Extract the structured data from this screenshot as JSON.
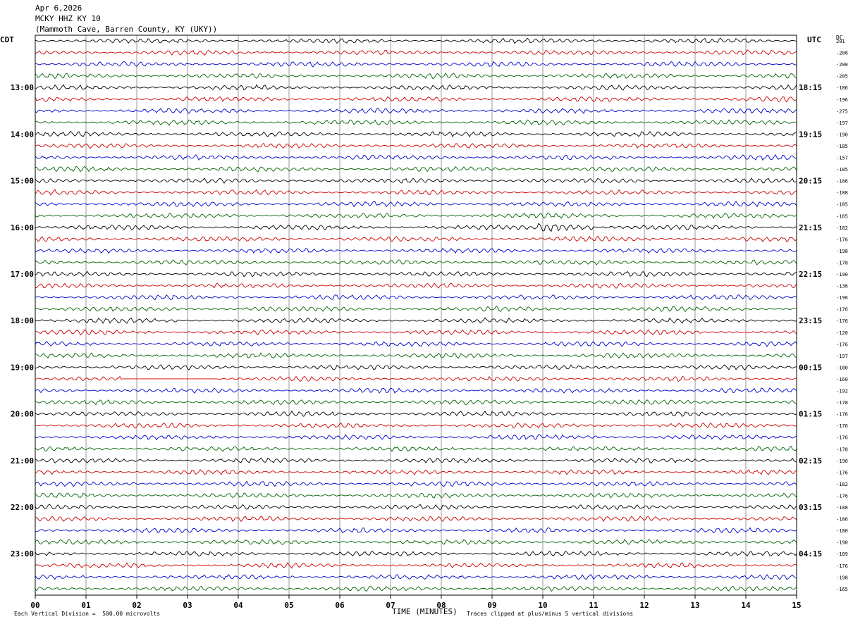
{
  "header": {
    "date": "Apr 6,2026",
    "station": "MCKY HHZ KY 10",
    "location": "(Mammoth Cave, Barren County, KY (UKY))"
  },
  "labels": {
    "left_tz": "CDT",
    "right_tz": "UTC",
    "dc_label": "DC"
  },
  "footer": {
    "scale": "Each Vertical Division =  500.00 microvolts",
    "xlabel": "TIME (MINUTES)",
    "clip": "Traces clipped at plus/minus 5 vertical divisions"
  },
  "colors": {
    "trace_cycle": [
      "#000000",
      "#cc0000",
      "#0000cc",
      "#006400"
    ],
    "grid": "#808080"
  },
  "chart_data": {
    "type": "seismogram-helicorder",
    "xlabel": "TIME (MINUTES)",
    "x_ticks": [
      "00",
      "01",
      "02",
      "03",
      "04",
      "05",
      "06",
      "07",
      "08",
      "09",
      "10",
      "11",
      "12",
      "13",
      "14",
      "15"
    ],
    "xlim": [
      0,
      15
    ],
    "rows_per_hour": 4,
    "minutes_per_row": 15,
    "left_hour_labels": [
      "13:00",
      "14:00",
      "15:00",
      "16:00",
      "17:00",
      "18:00",
      "19:00",
      "20:00",
      "21:00",
      "22:00",
      "23:00"
    ],
    "right_hour_labels": [
      "18:15",
      "19:15",
      "20:15",
      "21:15",
      "22:15",
      "23:15",
      "00:15",
      "01:15",
      "02:15",
      "03:15",
      "04:15"
    ],
    "dc_offsets": [
      "201",
      "-208",
      "-200",
      "-205",
      "-186",
      "-196",
      "-275",
      "-197",
      "-190",
      "-185",
      "-157",
      "-185",
      "-186",
      "-188",
      "-185",
      "-165",
      "-182",
      "-176",
      "-198",
      "-178",
      "-190",
      "-136",
      "-196",
      "-176",
      "-176",
      "-120",
      "-176",
      "-197",
      "-180",
      "-160",
      "-192",
      "-178",
      "-176",
      "-176",
      "-176",
      "-178",
      "-190",
      "-176",
      "-182",
      "-176",
      "-188",
      "-186",
      "-180",
      "-190",
      "-189",
      "-176",
      "-198",
      "-165"
    ],
    "events": [
      {
        "row": 16,
        "start_min": 9.9,
        "end_min": 11.0,
        "description": "high-amplitude burst"
      },
      {
        "row": 29,
        "start_min": 1.7,
        "end_min": 3.6,
        "description": "flat data gap"
      }
    ]
  }
}
